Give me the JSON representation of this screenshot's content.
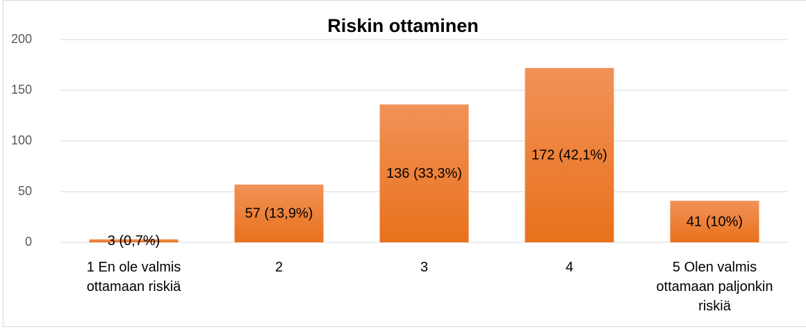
{
  "chart_data": {
    "type": "bar",
    "title": "Riskin ottaminen",
    "categories": [
      "1 En ole valmis ottamaan riskiä",
      "2",
      "3",
      "4",
      "5 Olen valmis ottamaan paljonkin riskiä"
    ],
    "values": [
      3,
      57,
      136,
      172,
      41
    ],
    "value_labels": [
      "3 (0,7%)",
      "57 (13,9%)",
      "136 (33,3%)",
      "172 (42,1%)",
      "41 (10%)"
    ],
    "color": "#ed7d31",
    "ylim": [
      0,
      200
    ],
    "yticks": [
      0,
      50,
      100,
      150,
      200
    ],
    "grid": true
  }
}
